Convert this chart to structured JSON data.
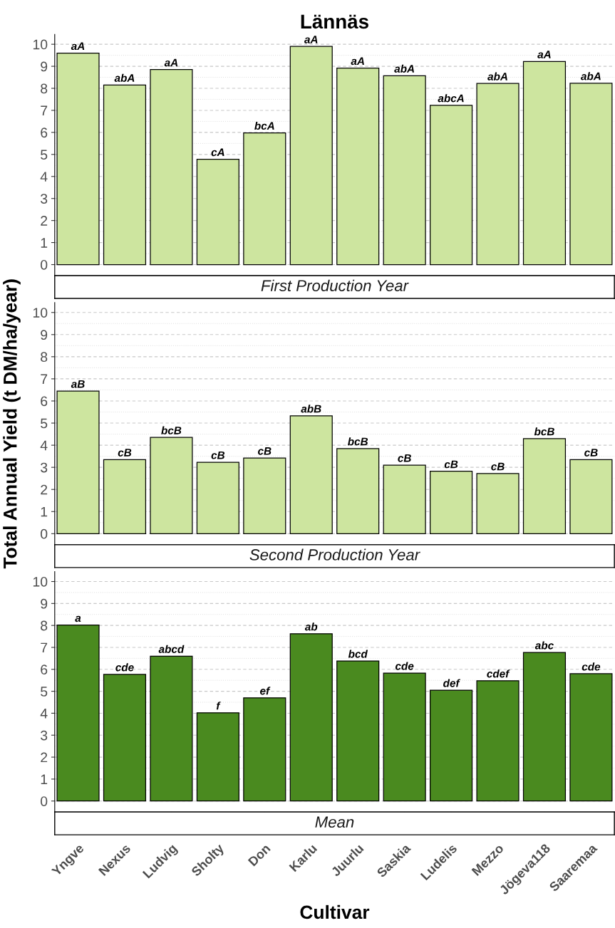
{
  "chart_data": [
    {
      "type": "bar",
      "title": "Lännäs",
      "subtitle": "First Production Year",
      "categories": [
        null,
        null,
        null,
        null,
        null,
        null,
        null,
        null,
        null,
        null,
        null,
        null
      ],
      "series": [
        {
          "color": "#cde59f",
          "values": [
            9.6,
            8.15,
            8.85,
            4.78,
            5.98,
            9.9,
            8.92,
            8.57,
            7.23,
            8.22,
            9.22,
            8.23
          ],
          "value_labels": [
            "aA",
            "abA",
            "aA",
            "cA",
            "bcA",
            "aA",
            "aA",
            "abA",
            "abcA",
            "abA",
            "aA",
            "abA"
          ]
        }
      ],
      "ylim": [
        -0.5,
        10.45
      ],
      "yticks": [
        0,
        1,
        2,
        3,
        4,
        5,
        6,
        7,
        8,
        9,
        10
      ],
      "grid": "y",
      "tick_labels": "y"
    },
    {
      "type": "bar",
      "subtitle": "Second Production Year",
      "ylabel": "Total Annual Yield (t DM/ha/year)",
      "categories": [
        null,
        null,
        null,
        null,
        null,
        null,
        null,
        null,
        null,
        null,
        null,
        null
      ],
      "series": [
        {
          "color": "#cde59f",
          "values": [
            6.45,
            3.35,
            4.35,
            3.23,
            3.42,
            5.33,
            3.85,
            3.1,
            2.82,
            2.72,
            4.3,
            3.35
          ],
          "value_labels": [
            "aB",
            "cB",
            "bcB",
            "cB",
            "cB",
            "abB",
            "bcB",
            "cB",
            "cB",
            "cB",
            "bcB",
            "cB"
          ]
        }
      ],
      "ylim": [
        -0.5,
        10.45
      ],
      "yticks": [
        0,
        1,
        2,
        3,
        4,
        5,
        6,
        7,
        8,
        9,
        10
      ],
      "grid": "y",
      "tick_labels": "y"
    },
    {
      "type": "bar",
      "subtitle": "Mean",
      "xlabel": "Cultivar",
      "categories": [
        "Yngve",
        "Nexus",
        "Ludvig",
        "Sholty",
        "Don",
        "Karlu",
        "Juurlu",
        "Saskia",
        "Ludelis",
        "Mezzo",
        "Jögeva118",
        "Saaremaa"
      ],
      "series": [
        {
          "color": "#4a8a1f",
          "values": [
            8.02,
            5.77,
            6.6,
            4.02,
            4.7,
            7.62,
            6.38,
            5.83,
            5.05,
            5.48,
            6.77,
            5.8
          ],
          "value_labels": [
            "a",
            "cde",
            "abcd",
            "f",
            "ef",
            "ab",
            "bcd",
            "cde",
            "def",
            "cdef",
            "abc",
            "cde"
          ]
        }
      ],
      "ylim": [
        -0.5,
        10.45
      ],
      "yticks": [
        0,
        1,
        2,
        3,
        4,
        5,
        6,
        7,
        8,
        9,
        10
      ],
      "grid": "y"
    }
  ]
}
